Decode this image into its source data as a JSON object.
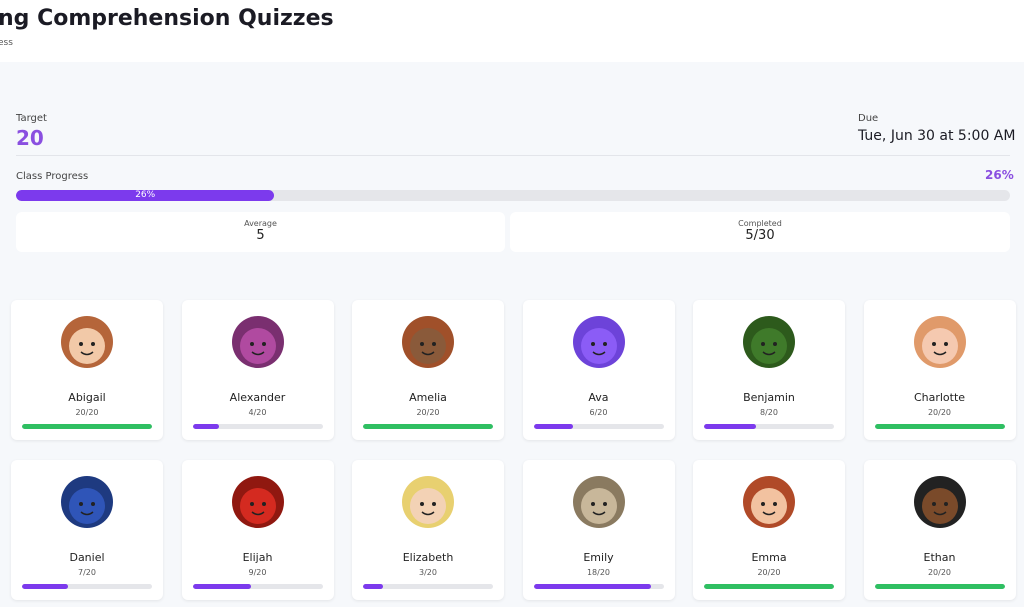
{
  "header": {
    "title": "ng Comprehension Quizzes",
    "subtitle": "ess"
  },
  "summary": {
    "target_label": "Target",
    "target": 20,
    "due_label": "Due",
    "due": "Tue, Jun 30 at 5:00 AM",
    "progress_label": "Class Progress",
    "progress": 26,
    "progress_text": "26%",
    "average_label": "Average",
    "average": 5,
    "completed_label": "Completed",
    "completed": "5/30"
  },
  "students": [
    {
      "name": "Abigail",
      "score": 20,
      "label": "20/20"
    },
    {
      "name": "Alexander",
      "score": 4,
      "label": "4/20"
    },
    {
      "name": "Amelia",
      "score": 20,
      "label": "20/20"
    },
    {
      "name": "Ava",
      "score": 6,
      "label": "6/20"
    },
    {
      "name": "Benjamin",
      "score": 8,
      "label": "8/20"
    },
    {
      "name": "Charlotte",
      "score": 20,
      "label": "20/20"
    },
    {
      "name": "Daniel",
      "score": 7,
      "label": "7/20"
    },
    {
      "name": "Elijah",
      "score": 9,
      "label": "9/20"
    },
    {
      "name": "Elizabeth",
      "score": 3,
      "label": "3/20"
    },
    {
      "name": "Emily",
      "score": 18,
      "label": "18/20"
    },
    {
      "name": "Emma",
      "score": 20,
      "label": "20/20"
    },
    {
      "name": "Ethan",
      "score": 20,
      "label": "20/20"
    }
  ]
}
